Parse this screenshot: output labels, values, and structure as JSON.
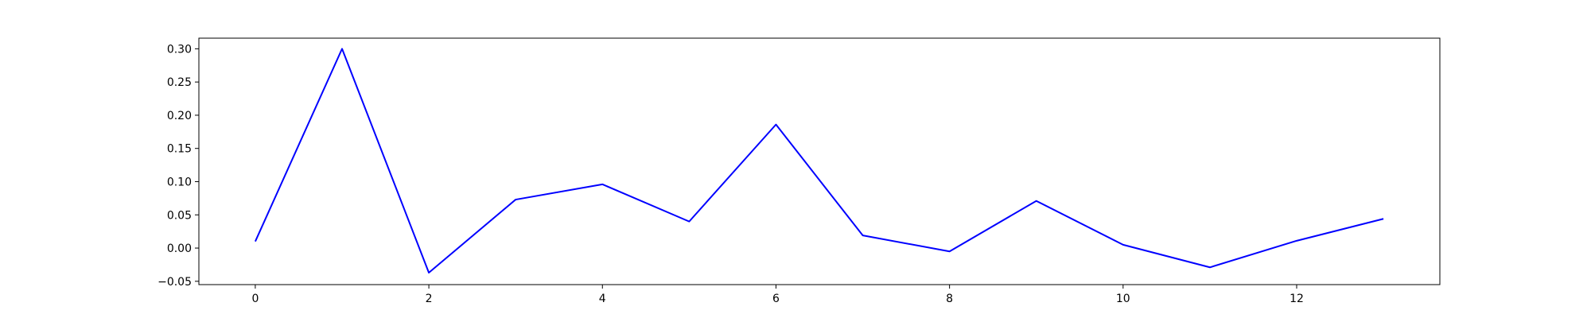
{
  "chart_data": {
    "type": "line",
    "title": "",
    "xlabel": "",
    "ylabel": "",
    "xlim": [
      -0.65,
      13.65
    ],
    "ylim": [
      -0.055,
      0.316
    ],
    "xticks": [
      0,
      2,
      4,
      6,
      8,
      10,
      12
    ],
    "xtick_labels": [
      "0",
      "2",
      "4",
      "6",
      "8",
      "10",
      "12"
    ],
    "yticks": [
      -0.05,
      0.0,
      0.05,
      0.1,
      0.15,
      0.2,
      0.25,
      0.3
    ],
    "ytick_labels": [
      "−0.05",
      "0.00",
      "0.05",
      "0.10",
      "0.15",
      "0.20",
      "0.25",
      "0.30"
    ],
    "grid": false,
    "series": [
      {
        "color": "#0000ff",
        "x": [
          0,
          1,
          2,
          3,
          4,
          5,
          6,
          7,
          8,
          9,
          10,
          11,
          12,
          13
        ],
        "y": [
          0.01,
          0.3,
          -0.037,
          0.073,
          0.096,
          0.04,
          0.186,
          0.019,
          -0.005,
          0.071,
          0.005,
          -0.029,
          0.011,
          0.044
        ]
      }
    ]
  }
}
